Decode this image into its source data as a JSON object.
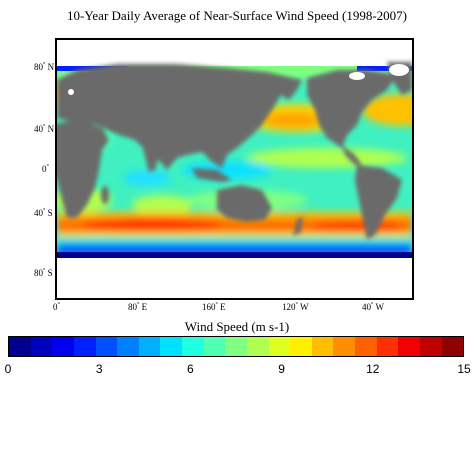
{
  "title": "10-Year Daily Average of Near-Surface Wind Speed (1998-2007)",
  "map": {
    "projection": "equirectangular",
    "land_color": "#6b6b6b",
    "ice_color": "#ffffff",
    "lat_labels": [
      {
        "deg": "80",
        "hemi": "N"
      },
      {
        "deg": "40",
        "hemi": "N"
      },
      {
        "deg": "0",
        "hemi": ""
      },
      {
        "deg": "40",
        "hemi": "S"
      },
      {
        "deg": "80",
        "hemi": "S"
      }
    ],
    "lon_labels": [
      {
        "deg": "0",
        "hemi": ""
      },
      {
        "deg": "80",
        "hemi": "E"
      },
      {
        "deg": "160",
        "hemi": "E"
      },
      {
        "deg": "120",
        "hemi": "W"
      },
      {
        "deg": "40",
        "hemi": "W"
      }
    ]
  },
  "colorbar": {
    "label": "Wind Speed (m s-1)",
    "min": 0,
    "max": 15,
    "ticks": [
      "0",
      "3",
      "6",
      "9",
      "12",
      "15"
    ],
    "colors": [
      "#00008f",
      "#0000bf",
      "#0000ef",
      "#0020ff",
      "#0050ff",
      "#0080ff",
      "#00b0ff",
      "#00e0ff",
      "#20ffdf",
      "#50ffaf",
      "#80ff80",
      "#b0ff50",
      "#dfff20",
      "#ffef00",
      "#ffbf00",
      "#ff8f00",
      "#ff6000",
      "#ff3000",
      "#f00000",
      "#bf0000",
      "#8f0000"
    ]
  }
}
